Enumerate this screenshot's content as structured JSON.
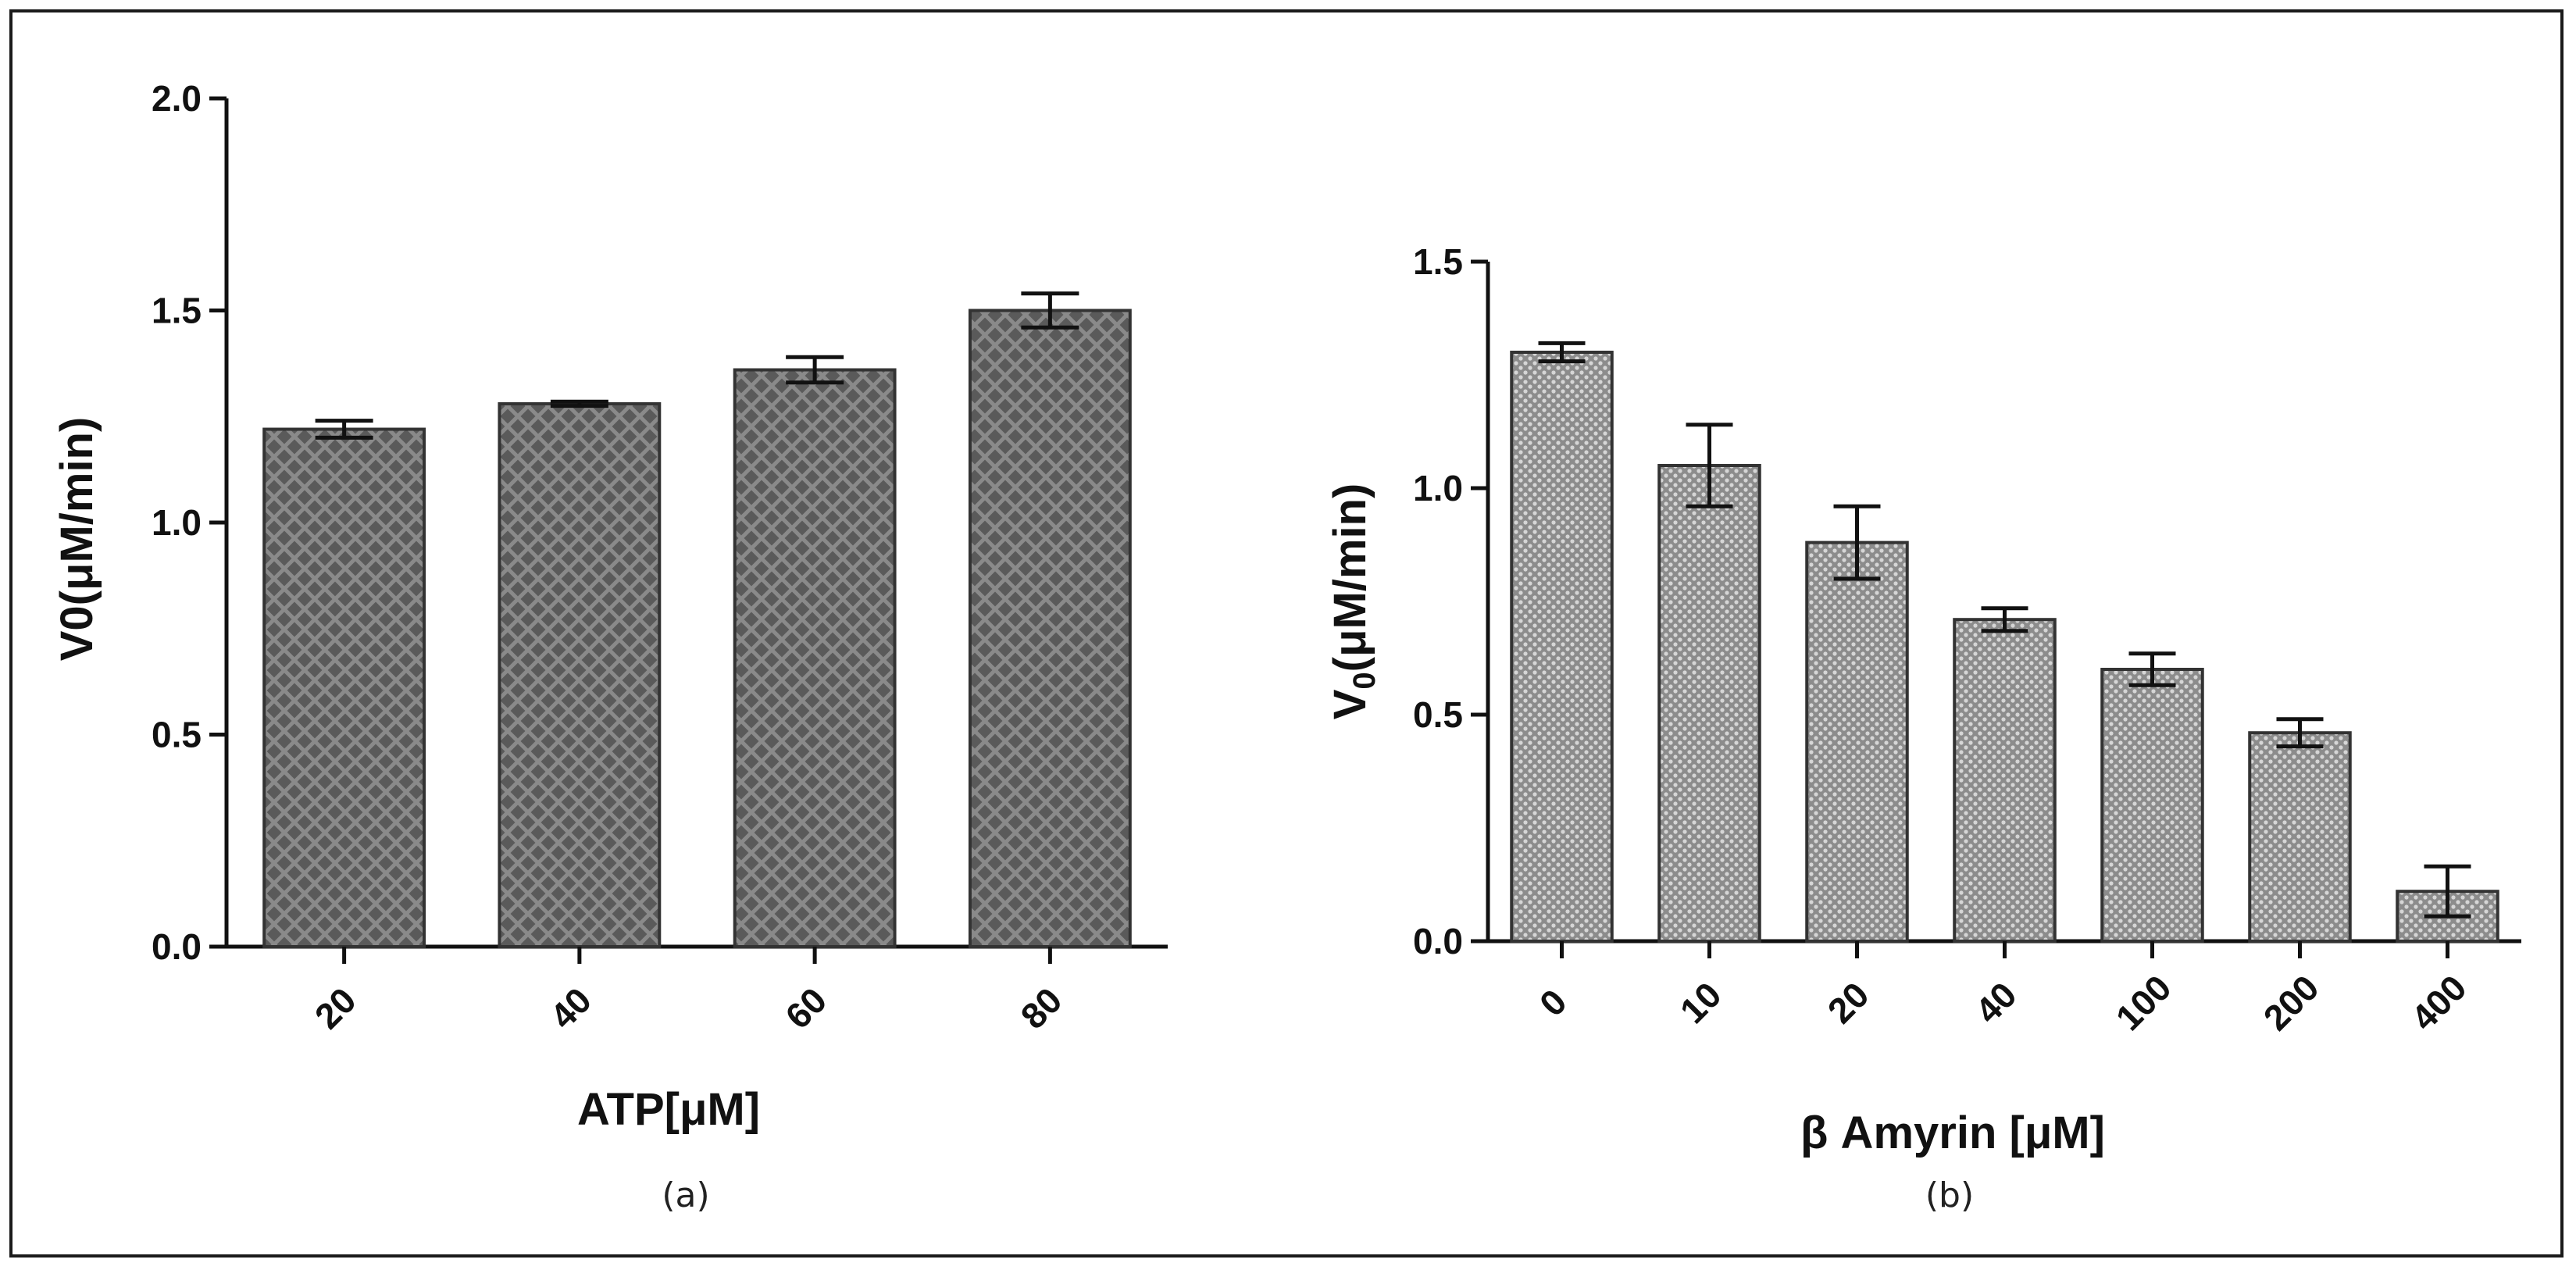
{
  "colors": {
    "frame": "#1a1a1a",
    "axis": "#111111",
    "bar_a_fill": "#5a5a5a",
    "bar_a_hatch": "#8a8a8a",
    "bar_b_fill": "#8c8c8c",
    "bar_b_dot": "#d6d6d6",
    "bar_edge": "#333333"
  },
  "chart_data": [
    {
      "type": "bar",
      "panel_label": "(a)",
      "categories": [
        "20",
        "40",
        "60",
        "80"
      ],
      "values": [
        1.22,
        1.28,
        1.36,
        1.5
      ],
      "errors": [
        0.02,
        0.005,
        0.03,
        0.04
      ],
      "title": "",
      "xlabel": "ATP[μM]",
      "ylabel": "V0(μM/min)",
      "ylim": [
        0,
        2.0
      ],
      "yticks": [
        0.0,
        0.5,
        1.0,
        1.5,
        2.0
      ],
      "ytick_labels": [
        "0.0",
        "0.5",
        "1.0",
        "1.5",
        "2.0"
      ],
      "pattern": "crosshatch",
      "grid": false,
      "legend": "none"
    },
    {
      "type": "bar",
      "panel_label": "(b)",
      "categories": [
        "0",
        "10",
        "20",
        "40",
        "100",
        "200",
        "400"
      ],
      "values": [
        1.3,
        1.05,
        0.88,
        0.71,
        0.6,
        0.46,
        0.11
      ],
      "errors": [
        0.02,
        0.09,
        0.08,
        0.025,
        0.035,
        0.03,
        0.055
      ],
      "title": "",
      "xlabel": "β Amyrin [μM]",
      "ylabel_main": "V",
      "ylabel_sub": "0",
      "ylabel_rest": "(μM/min)",
      "ylim": [
        0,
        1.5
      ],
      "yticks": [
        0.0,
        0.5,
        1.0,
        1.5
      ],
      "ytick_labels": [
        "0.0",
        "0.5",
        "1.0",
        "1.5"
      ],
      "pattern": "dots",
      "grid": false,
      "legend": "none"
    }
  ]
}
